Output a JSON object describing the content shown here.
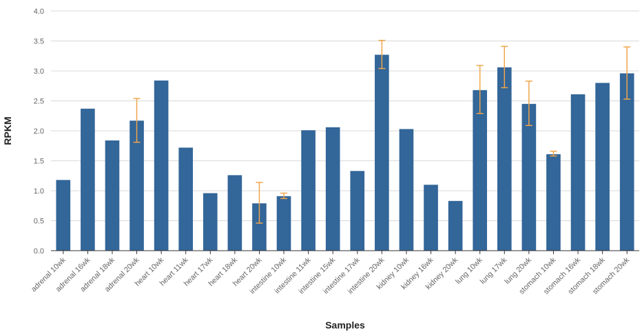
{
  "chart_data": {
    "type": "bar",
    "title": "",
    "xlabel": "Samples",
    "ylabel": "RPKM",
    "ylim": [
      0,
      4.0
    ],
    "yticks": [
      "0.0",
      "0.5",
      "1.0",
      "1.5",
      "2.0",
      "2.5",
      "3.0",
      "3.5",
      "4.0"
    ],
    "grid": true,
    "categories": [
      "adrenal 10wk",
      "adrenal 16wk",
      "adrenal 18wk",
      "adrenal 20wk",
      "heart 10wk",
      "heart 11wk",
      "heart 17wk",
      "heart 18wk",
      "heart 20wk",
      "intestine 10wk",
      "intestine 11wk",
      "intestine 15wk",
      "intestine 17wk",
      "intestine 20wk",
      "kidney 10wk",
      "kidney 16wk",
      "kidney 20wk",
      "lung 10wk",
      "lung 17wk",
      "lung 20wk",
      "stomach 10wk",
      "stomach 16wk",
      "stomach 18wk",
      "stomach 20wk"
    ],
    "values": [
      1.18,
      2.37,
      1.84,
      2.17,
      2.84,
      1.72,
      0.96,
      1.26,
      0.79,
      0.91,
      2.01,
      2.06,
      1.33,
      3.27,
      2.03,
      1.1,
      0.83,
      2.68,
      3.06,
      2.45,
      1.61,
      2.61,
      2.8,
      2.96
    ],
    "error_bars": [
      null,
      null,
      null,
      [
        1.81,
        2.54
      ],
      null,
      null,
      null,
      null,
      [
        0.46,
        1.14
      ],
      [
        0.87,
        0.96
      ],
      null,
      null,
      null,
      [
        3.04,
        3.51
      ],
      null,
      null,
      null,
      [
        2.29,
        3.09
      ],
      [
        2.72,
        3.41
      ],
      [
        2.09,
        2.83
      ],
      [
        1.58,
        1.66
      ],
      null,
      null,
      [
        2.53,
        3.4
      ]
    ],
    "colors": {
      "bar": "#336699",
      "error": "#f0a54a",
      "grid": "#d9d9d9",
      "axis": "#333333",
      "tick": "#666666"
    }
  }
}
